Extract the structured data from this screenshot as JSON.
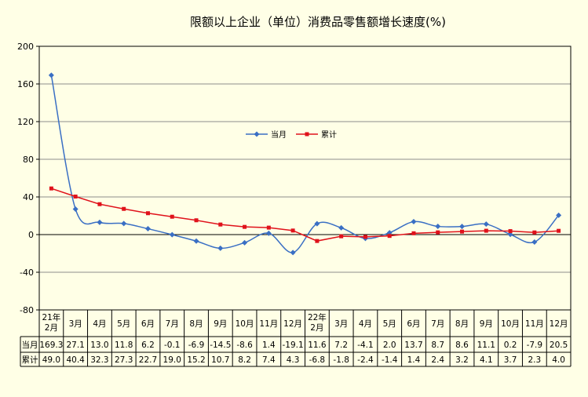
{
  "chart_data": {
    "type": "line",
    "title": "限额以上企业（单位）消费品零售额增长速度(%)",
    "categories": [
      "21年\n2月",
      "3月",
      "4月",
      "5月",
      "6月",
      "7月",
      "8月",
      "9月",
      "10月",
      "11月",
      "12月",
      "22年\n2月",
      "3月",
      "4月",
      "5月",
      "6月",
      "7月",
      "8月",
      "9月",
      "10月",
      "11月",
      "12月"
    ],
    "series": [
      {
        "name": "当月",
        "color": "#3A6FC4",
        "values": [
          169.3,
          27.1,
          13.0,
          11.8,
          6.2,
          -0.1,
          -6.9,
          -14.5,
          -8.6,
          1.4,
          -19.1,
          11.6,
          7.2,
          -4.1,
          2.0,
          13.7,
          8.7,
          8.6,
          11.1,
          0.2,
          -7.9,
          20.5
        ],
        "labels": [
          "169.3",
          "27.1",
          "13.0",
          "11.8",
          "6.2",
          "-0.1",
          "-6.9",
          "-14.5",
          "-8.6",
          "1.4",
          "-19.1",
          "11.6",
          "7.2",
          "-4.1",
          "2.0",
          "13.7",
          "8.7",
          "8.6",
          "11.1",
          "0.2",
          "-7.9",
          "20.5"
        ]
      },
      {
        "name": "累计",
        "color": "#E0121B",
        "values": [
          49.0,
          40.4,
          32.3,
          27.3,
          22.7,
          19.0,
          15.2,
          10.7,
          8.2,
          7.4,
          4.3,
          -6.8,
          -1.8,
          -2.4,
          -1.4,
          1.4,
          2.4,
          3.2,
          4.1,
          3.7,
          2.3,
          4.0
        ],
        "labels": [
          "49.0",
          "40.4",
          "32.3",
          "27.3",
          "22.7",
          "19.0",
          "15.2",
          "10.7",
          "8.2",
          "7.4",
          "4.3",
          "-6.8",
          "-1.8",
          "-2.4",
          "-1.4",
          "1.4",
          "2.4",
          "3.2",
          "4.1",
          "3.7",
          "2.3",
          "4.0"
        ]
      }
    ],
    "ylim": [
      -80,
      200
    ],
    "yticks": [
      "200",
      "160",
      "120",
      "80",
      "40",
      "0",
      "-40",
      "-80"
    ],
    "grid": true,
    "legend": "center",
    "data_table": true
  }
}
